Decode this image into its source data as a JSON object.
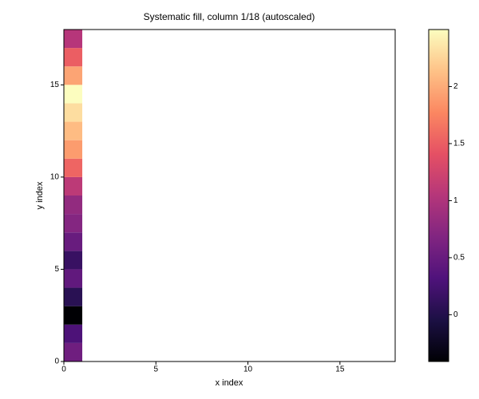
{
  "chart_data": {
    "type": "heatmap",
    "title": "Systematic fill, column 1/18 (autoscaled)",
    "x_label": "x index",
    "y_label": "y index",
    "xlim": [
      0,
      18
    ],
    "ylim": [
      0,
      18
    ],
    "xticks": [
      0,
      5,
      10,
      15
    ],
    "yticks": [
      0,
      5,
      10,
      15
    ],
    "colormap": "magma",
    "clim": [
      -0.41,
      2.5
    ],
    "cticks": [
      0,
      0.5,
      1,
      1.5,
      2
    ],
    "z": [
      [
        0.55,
        null,
        null,
        null,
        null,
        null,
        null,
        null,
        null,
        null,
        null,
        null,
        null,
        null,
        null,
        null,
        null,
        null
      ],
      [
        0.3,
        null,
        null,
        null,
        null,
        null,
        null,
        null,
        null,
        null,
        null,
        null,
        null,
        null,
        null,
        null,
        null,
        null
      ],
      [
        -0.41,
        null,
        null,
        null,
        null,
        null,
        null,
        null,
        null,
        null,
        null,
        null,
        null,
        null,
        null,
        null,
        null,
        null
      ],
      [
        0.05,
        null,
        null,
        null,
        null,
        null,
        null,
        null,
        null,
        null,
        null,
        null,
        null,
        null,
        null,
        null,
        null,
        null
      ],
      [
        0.45,
        null,
        null,
        null,
        null,
        null,
        null,
        null,
        null,
        null,
        null,
        null,
        null,
        null,
        null,
        null,
        null,
        null
      ],
      [
        0.15,
        null,
        null,
        null,
        null,
        null,
        null,
        null,
        null,
        null,
        null,
        null,
        null,
        null,
        null,
        null,
        null,
        null
      ],
      [
        0.5,
        null,
        null,
        null,
        null,
        null,
        null,
        null,
        null,
        null,
        null,
        null,
        null,
        null,
        null,
        null,
        null,
        null
      ],
      [
        0.7,
        null,
        null,
        null,
        null,
        null,
        null,
        null,
        null,
        null,
        null,
        null,
        null,
        null,
        null,
        null,
        null,
        null
      ],
      [
        0.8,
        null,
        null,
        null,
        null,
        null,
        null,
        null,
        null,
        null,
        null,
        null,
        null,
        null,
        null,
        null,
        null,
        null
      ],
      [
        1.1,
        null,
        null,
        null,
        null,
        null,
        null,
        null,
        null,
        null,
        null,
        null,
        null,
        null,
        null,
        null,
        null,
        null
      ],
      [
        1.55,
        null,
        null,
        null,
        null,
        null,
        null,
        null,
        null,
        null,
        null,
        null,
        null,
        null,
        null,
        null,
        null,
        null
      ],
      [
        1.9,
        null,
        null,
        null,
        null,
        null,
        null,
        null,
        null,
        null,
        null,
        null,
        null,
        null,
        null,
        null,
        null,
        null
      ],
      [
        2.1,
        null,
        null,
        null,
        null,
        null,
        null,
        null,
        null,
        null,
        null,
        null,
        null,
        null,
        null,
        null,
        null,
        null
      ],
      [
        2.3,
        null,
        null,
        null,
        null,
        null,
        null,
        null,
        null,
        null,
        null,
        null,
        null,
        null,
        null,
        null,
        null,
        null
      ],
      [
        2.5,
        null,
        null,
        null,
        null,
        null,
        null,
        null,
        null,
        null,
        null,
        null,
        null,
        null,
        null,
        null,
        null,
        null
      ],
      [
        1.95,
        null,
        null,
        null,
        null,
        null,
        null,
        null,
        null,
        null,
        null,
        null,
        null,
        null,
        null,
        null,
        null,
        null
      ],
      [
        1.5,
        null,
        null,
        null,
        null,
        null,
        null,
        null,
        null,
        null,
        null,
        null,
        null,
        null,
        null,
        null,
        null,
        null
      ],
      [
        1.05,
        null,
        null,
        null,
        null,
        null,
        null,
        null,
        null,
        null,
        null,
        null,
        null,
        null,
        null,
        null,
        null,
        null
      ]
    ]
  }
}
